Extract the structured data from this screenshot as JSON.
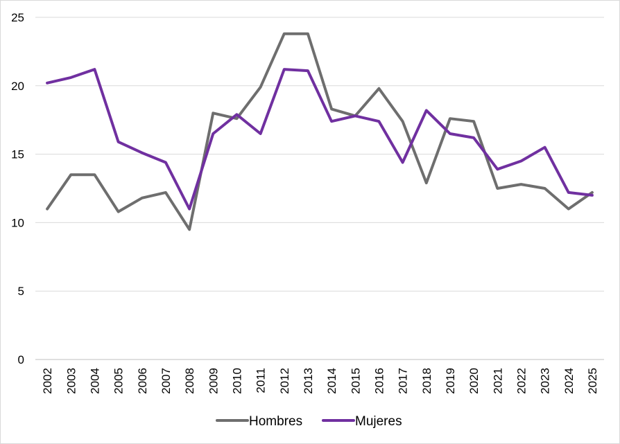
{
  "chart_data": {
    "type": "line",
    "title": "",
    "xlabel": "",
    "ylabel": "",
    "ylim": [
      0,
      25
    ],
    "yticks": [
      0,
      5,
      10,
      15,
      20,
      25
    ],
    "grid": true,
    "legend_position": "bottom",
    "categories": [
      "2002",
      "2003",
      "2004",
      "2005",
      "2006",
      "2007",
      "2008",
      "2009",
      "2010",
      "2011",
      "2012",
      "2013",
      "2014",
      "2015",
      "2016",
      "2017",
      "2018",
      "2019",
      "2020",
      "2021",
      "2022",
      "2023",
      "2024",
      "2025"
    ],
    "series": [
      {
        "name": "Hombres",
        "color": "#6e6e6e",
        "values": [
          11.0,
          13.5,
          13.5,
          10.8,
          11.8,
          12.2,
          9.5,
          18.0,
          17.6,
          19.9,
          23.8,
          23.8,
          18.3,
          17.8,
          19.8,
          17.4,
          12.9,
          17.6,
          17.4,
          12.5,
          12.8,
          12.5,
          11.0,
          12.2
        ]
      },
      {
        "name": "Mujeres",
        "color": "#7030a0",
        "values": [
          20.2,
          20.6,
          21.2,
          15.9,
          15.1,
          14.4,
          11.0,
          16.5,
          17.9,
          16.5,
          21.2,
          21.1,
          17.4,
          17.8,
          17.4,
          14.4,
          18.2,
          16.5,
          16.2,
          13.9,
          14.5,
          15.5,
          12.2,
          12.0
        ]
      }
    ]
  }
}
